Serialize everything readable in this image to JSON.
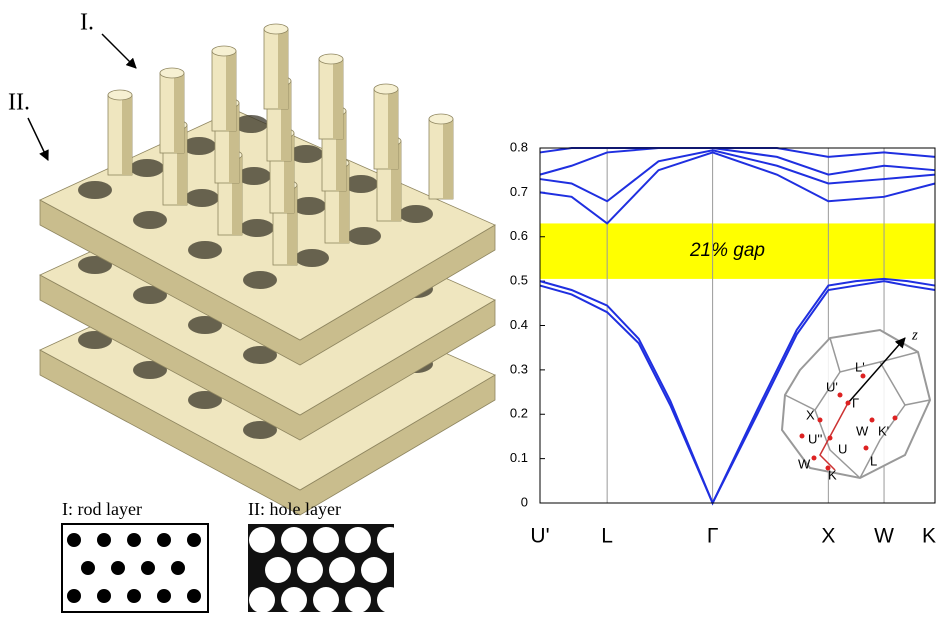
{
  "structure_labels": {
    "rod": "I.",
    "hole": "II."
  },
  "layer_insets": {
    "rod_layer": "I:  rod layer",
    "hole_layer": "II:  hole layer"
  },
  "brillouin_zone": {
    "axis": "z",
    "labels": [
      "L'",
      "U'",
      "Γ",
      "X",
      "W",
      "K'",
      "U''",
      "U",
      "L",
      "W",
      "K"
    ]
  },
  "chart_data": {
    "type": "line",
    "color": "#1f2fe0",
    "xlim": [
      0,
      1
    ],
    "xticks": [
      {
        "value": 0,
        "label": "U'"
      },
      {
        "value": 0.17,
        "label": "L"
      },
      {
        "value": 0.437,
        "label": "Γ"
      },
      {
        "value": 0.73,
        "label": "X"
      },
      {
        "value": 0.871,
        "label": "W"
      },
      {
        "value": 1,
        "label": "K"
      }
    ],
    "ylim": [
      0,
      0.8
    ],
    "yticks": [
      0,
      0.1,
      0.2,
      0.3,
      0.4,
      0.5,
      0.6,
      0.7,
      0.8
    ],
    "annotations": [
      {
        "text": "21% gap",
        "y_range": [
          0.505,
          0.63
        ],
        "color": "#ffff00"
      }
    ],
    "series": [
      {
        "x": [
          0,
          0.08,
          0.17,
          0.25,
          0.33,
          0.437,
          0.55,
          0.65,
          0.73,
          0.8,
          0.871,
          0.93,
          1
        ],
        "values": [
          0.49,
          0.47,
          0.43,
          0.36,
          0.22,
          0,
          0.2,
          0.38,
          0.48,
          0.49,
          0.5,
          0.49,
          0.48
        ]
      },
      {
        "x": [
          0,
          0.08,
          0.17,
          0.25,
          0.33,
          0.437,
          0.55,
          0.65,
          0.73,
          0.8,
          0.871,
          0.93,
          1
        ],
        "values": [
          0.5,
          0.48,
          0.445,
          0.37,
          0.23,
          0,
          0.21,
          0.39,
          0.49,
          0.5,
          0.505,
          0.5,
          0.49
        ]
      },
      {
        "x": [
          0,
          0.08,
          0.17,
          0.3,
          0.437,
          0.6,
          0.73,
          0.871,
          1
        ],
        "values": [
          0.7,
          0.69,
          0.63,
          0.75,
          0.79,
          0.74,
          0.68,
          0.69,
          0.72
        ]
      },
      {
        "x": [
          0,
          0.08,
          0.17,
          0.3,
          0.437,
          0.6,
          0.73,
          0.871,
          1
        ],
        "values": [
          0.73,
          0.72,
          0.68,
          0.77,
          0.795,
          0.76,
          0.72,
          0.73,
          0.74
        ]
      },
      {
        "x": [
          0,
          0.08,
          0.17,
          0.3,
          0.437,
          0.6,
          0.73,
          0.871,
          1
        ],
        "values": [
          0.74,
          0.76,
          0.79,
          0.8,
          0.8,
          0.78,
          0.74,
          0.76,
          0.75
        ]
      },
      {
        "x": [
          0,
          0.08,
          0.17,
          0.3,
          0.437,
          0.6,
          0.73,
          0.871,
          1
        ],
        "values": [
          0.79,
          0.8,
          0.8,
          0.8,
          0.8,
          0.8,
          0.78,
          0.79,
          0.78
        ]
      }
    ]
  }
}
